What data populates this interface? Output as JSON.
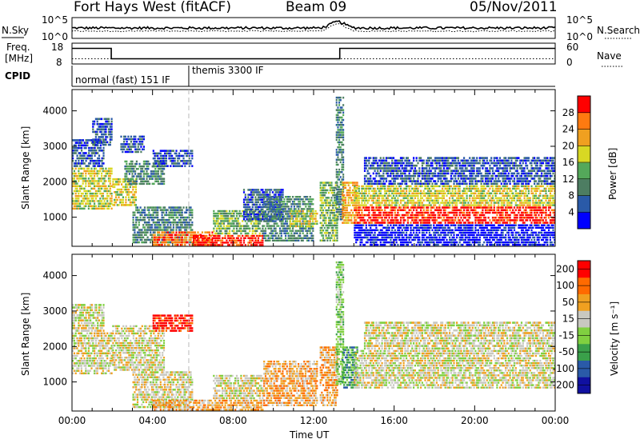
{
  "header": {
    "station": "Fort Hays West (fitACF)",
    "beam": "Beam 09",
    "date": "05/Nov/2011"
  },
  "sky_panel": {
    "left_label": "N.Sky",
    "left_ticks": [
      "10^5",
      "10^0"
    ],
    "right_label": "N.Search",
    "right_ticks": [
      "10^5",
      "10^0"
    ],
    "sky_base": 0.5,
    "search_base": 0.35,
    "peak_time": 13.2
  },
  "freq_panel": {
    "left_label_line1": "Freq.",
    "left_label_line2": "[MHz]",
    "left_ticks": [
      "18",
      "8"
    ],
    "right_label": "Nave",
    "right_ticks": [
      "60",
      "0"
    ],
    "freq_segments": [
      {
        "start": 0.0,
        "end": 1.95,
        "value": 15.5
      },
      {
        "start": 1.95,
        "end": 13.3,
        "value": 10.5
      },
      {
        "start": 13.3,
        "end": 24.0,
        "value": 15.5
      }
    ],
    "nave_level": 10.5
  },
  "cpid_panel": {
    "label": "CPID",
    "segments": [
      {
        "start": 0.0,
        "end": 5.8,
        "text": "normal (fast) 151 IF"
      },
      {
        "start": 5.8,
        "end": 24.0,
        "text": "themis 3300 IF"
      }
    ]
  },
  "chart_data": [
    {
      "type": "heatmap",
      "name": "power",
      "ylabel": "Slant Range [km]",
      "xlabel": "",
      "x_range": [
        0,
        24
      ],
      "ylim": [
        180,
        4600
      ],
      "yticks": [
        1000,
        2000,
        3000,
        4000
      ],
      "x_tick_labels": [
        "00:00",
        "04:00",
        "08:00",
        "12:00",
        "16:00",
        "20:00",
        "00:00"
      ],
      "colorbar": {
        "label": "Power [dB]",
        "ticks": [
          "4",
          "8",
          "12",
          "16",
          "20",
          "24",
          "28"
        ],
        "colors": [
          "#0000ff",
          "#2a5aa8",
          "#4d7d62",
          "#54a85a",
          "#d8d823",
          "#f0a020",
          "#ff7a10",
          "#ff0000"
        ]
      },
      "regions": [
        {
          "t0": 0.0,
          "t1": 2.0,
          "r0": 1200,
          "r1": 2400,
          "level": 4
        },
        {
          "t0": 0.0,
          "t1": 1.6,
          "r0": 2400,
          "r1": 3200,
          "level": 1
        },
        {
          "t0": 1.0,
          "t1": 2.0,
          "r0": 3000,
          "r1": 3800,
          "level": 1
        },
        {
          "t0": 2.0,
          "t1": 3.2,
          "r0": 1300,
          "r1": 2100,
          "level": 4
        },
        {
          "t0": 2.6,
          "t1": 4.6,
          "r0": 1900,
          "r1": 2600,
          "level": 2
        },
        {
          "t0": 2.4,
          "t1": 3.6,
          "r0": 2800,
          "r1": 3300,
          "level": 1
        },
        {
          "t0": 4.0,
          "t1": 6.0,
          "r0": 2400,
          "r1": 2900,
          "level": 1
        },
        {
          "t0": 3.0,
          "t1": 6.0,
          "r0": 250,
          "r1": 1300,
          "level": 2
        },
        {
          "t0": 4.0,
          "t1": 7.0,
          "r0": 180,
          "r1": 600,
          "level": 6
        },
        {
          "t0": 6.0,
          "t1": 9.5,
          "r0": 180,
          "r1": 500,
          "level": 7
        },
        {
          "t0": 7.0,
          "t1": 9.5,
          "r0": 500,
          "r1": 1200,
          "level": 3
        },
        {
          "t0": 8.5,
          "t1": 10.5,
          "r0": 900,
          "r1": 1800,
          "level": 1
        },
        {
          "t0": 9.5,
          "t1": 12.0,
          "r0": 300,
          "r1": 1600,
          "level": 2
        },
        {
          "t0": 10.8,
          "t1": 12.2,
          "r0": 700,
          "r1": 1200,
          "level": 4
        },
        {
          "t0": 12.3,
          "t1": 13.2,
          "r0": 300,
          "r1": 2000,
          "level": 3
        },
        {
          "t0": 13.1,
          "t1": 13.5,
          "r0": 900,
          "r1": 4400,
          "level": 2
        },
        {
          "t0": 13.4,
          "t1": 14.2,
          "r0": 800,
          "r1": 2000,
          "level": 5
        },
        {
          "t0": 14.0,
          "t1": 24.0,
          "r0": 800,
          "r1": 1300,
          "level": 7
        },
        {
          "t0": 14.0,
          "t1": 24.0,
          "r0": 1300,
          "r1": 1900,
          "level": 4
        },
        {
          "t0": 14.5,
          "t1": 24.0,
          "r0": 1900,
          "r1": 2700,
          "level": 1
        },
        {
          "t0": 14.0,
          "t1": 24.0,
          "r0": 180,
          "r1": 800,
          "level": 0
        }
      ]
    },
    {
      "type": "heatmap",
      "name": "velocity",
      "ylabel": "Slant Range [km]",
      "xlabel": "Time UT",
      "x_range": [
        0,
        24
      ],
      "ylim": [
        180,
        4600
      ],
      "yticks": [
        1000,
        2000,
        3000,
        4000
      ],
      "x_tick_labels": [
        "00:00",
        "04:00",
        "08:00",
        "12:00",
        "16:00",
        "20:00",
        "00:00"
      ],
      "colorbar": {
        "label": "Velocity [m s⁻¹]",
        "ticks": [
          "200",
          "100",
          "50",
          "15",
          "-15",
          "-50",
          "-100",
          "-200"
        ],
        "colors": [
          "#1010a0",
          "#2a5aa8",
          "#3aa04a",
          "#80d040",
          "#c8c8c0",
          "#f0a020",
          "#ff6a00",
          "#ff0000"
        ]
      },
      "regions": [
        {
          "t0": 0.0,
          "t1": 2.0,
          "r0": 1200,
          "r1": 2400,
          "level": 4
        },
        {
          "t0": 0.0,
          "t1": 1.6,
          "r0": 2400,
          "r1": 3200,
          "level": 4
        },
        {
          "t0": 2.0,
          "t1": 4.6,
          "r0": 1300,
          "r1": 2600,
          "level": 4
        },
        {
          "t0": 4.0,
          "t1": 6.0,
          "r0": 2400,
          "r1": 2900,
          "level": 7
        },
        {
          "t0": 3.0,
          "t1": 6.0,
          "r0": 250,
          "r1": 1300,
          "level": 4
        },
        {
          "t0": 4.0,
          "t1": 9.5,
          "r0": 180,
          "r1": 500,
          "level": 5
        },
        {
          "t0": 7.0,
          "t1": 9.5,
          "r0": 500,
          "r1": 1200,
          "level": 4
        },
        {
          "t0": 9.5,
          "t1": 12.2,
          "r0": 300,
          "r1": 1600,
          "level": 5
        },
        {
          "t0": 12.3,
          "t1": 13.2,
          "r0": 300,
          "r1": 2000,
          "level": 5
        },
        {
          "t0": 13.1,
          "t1": 13.5,
          "r0": 900,
          "r1": 4400,
          "level": 3
        },
        {
          "t0": 13.4,
          "t1": 14.2,
          "r0": 800,
          "r1": 2000,
          "level": 2
        },
        {
          "t0": 14.0,
          "t1": 24.0,
          "r0": 800,
          "r1": 1900,
          "level": 4
        },
        {
          "t0": 14.5,
          "t1": 24.0,
          "r0": 1900,
          "r1": 2700,
          "level": 4
        }
      ]
    }
  ]
}
